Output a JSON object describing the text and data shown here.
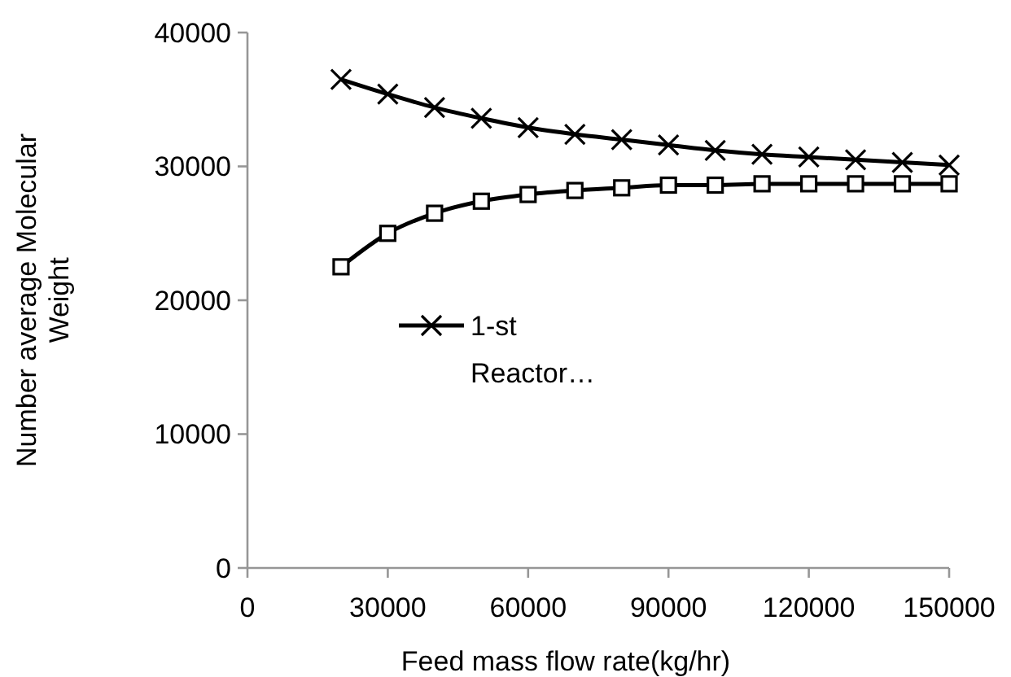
{
  "chart_data": {
    "type": "line",
    "xlabel": "Feed mass flow rate(kg/hr)",
    "ylabel": "Number average Molecular Weight",
    "x": [
      20000,
      30000,
      40000,
      50000,
      60000,
      70000,
      80000,
      90000,
      100000,
      110000,
      120000,
      130000,
      140000,
      150000
    ],
    "xlim": [
      0,
      150000
    ],
    "xticks": [
      0,
      30000,
      60000,
      90000,
      120000,
      150000
    ],
    "ylim": [
      0,
      40000
    ],
    "yticks": [
      0,
      10000,
      20000,
      30000,
      40000
    ],
    "grid": false,
    "legend": "left",
    "line_style": "solid",
    "series": [
      {
        "name": "1-st Reactor…",
        "color": "#000000",
        "marker": "cross",
        "values": [
          36500,
          35400,
          34400,
          33600,
          32900,
          32400,
          32000,
          31600,
          31200,
          30900,
          30700,
          30500,
          30300,
          30100
        ]
      },
      {
        "color": "#000000",
        "marker": "square",
        "values": [
          22500,
          25000,
          26500,
          27400,
          27900,
          28200,
          28400,
          28600,
          28600,
          28700,
          28700,
          28700,
          28700,
          28700
        ]
      }
    ]
  }
}
